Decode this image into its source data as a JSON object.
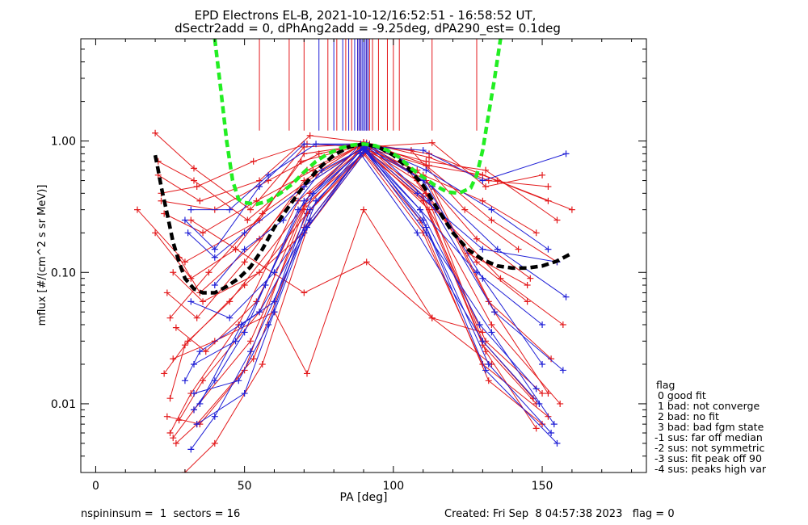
{
  "chart_data": {
    "type": "line",
    "title_line1": "EPD Electrons EL-B, 2021-10-12/16:52:51 - 16:58:52 UT,",
    "title_line2": "dSectr2add = 0, dPhAng2add = -9.25deg, dPA290_est=   0.1deg",
    "xlabel": "PA [deg]",
    "ylabel": "mflux [#/(cm^2 s sr MeV)]",
    "x_range": [
      -5,
      185
    ],
    "y_range": [
      0.003,
      6
    ],
    "y_scale": "log",
    "x_ticks": [
      0,
      50,
      100,
      150
    ],
    "y_ticks": [
      {
        "value": 0.01,
        "label": "0.01"
      },
      {
        "value": 0.1,
        "label": "0.10"
      },
      {
        "value": 1.0,
        "label": "1.00"
      }
    ],
    "legend": {
      "title": "flag",
      "entries": [
        " 0 good fit",
        " 1 bad: not converge",
        " 2 bad: no fit",
        " 3 bad: bad fgm state",
        "-1 sus: far off median",
        "-2 sus: not symmetric",
        "-3 sus: fit peak off 90",
        "-4 sus: peaks high var"
      ]
    },
    "footer_left": "nspininsum =  1  sectors = 16",
    "footer_right": "Created: Fri Sep  8 04:57:38 2023   flag = 0",
    "colors": {
      "red": "#e31a1c",
      "blue": "#1f1fd6",
      "green": "#22ee22",
      "black": "#000000"
    },
    "series": [
      {
        "color": "red",
        "x": [
          20,
          33,
          52,
          70,
          90,
          110,
          130,
          148
        ],
        "y": [
          1.15,
          0.62,
          0.3,
          0.9,
          0.95,
          0.55,
          0.35,
          0.2
        ]
      },
      {
        "color": "red",
        "x": [
          21,
          35,
          55,
          72,
          90,
          112,
          132,
          152
        ],
        "y": [
          0.55,
          0.35,
          0.5,
          1.1,
          0.98,
          0.75,
          0.5,
          0.45
        ]
      },
      {
        "color": "red",
        "x": [
          22,
          34,
          53,
          71,
          91,
          113,
          131,
          150
        ],
        "y": [
          0.4,
          0.45,
          0.7,
          0.95,
          0.9,
          0.97,
          0.45,
          0.55
        ]
      },
      {
        "color": "red",
        "x": [
          23,
          36,
          54,
          73,
          89,
          111,
          133,
          155
        ],
        "y": [
          0.28,
          0.2,
          0.35,
          0.6,
          0.92,
          0.65,
          0.25,
          0.12
        ]
      },
      {
        "color": "red",
        "x": [
          25,
          38,
          56,
          74,
          90,
          108,
          128,
          146
        ],
        "y": [
          0.045,
          0.1,
          0.28,
          0.55,
          0.88,
          0.6,
          0.18,
          0.09
        ]
      },
      {
        "color": "red",
        "x": [
          24,
          34,
          50,
          70,
          88,
          105,
          125,
          145
        ],
        "y": [
          0.07,
          0.045,
          0.12,
          0.5,
          0.9,
          0.6,
          0.14,
          0.08
        ]
      },
      {
        "color": "red",
        "x": [
          23,
          31,
          45,
          70,
          91,
          112,
          133,
          156
        ],
        "y": [
          0.017,
          0.03,
          0.06,
          0.32,
          0.85,
          0.3,
          0.04,
          0.01
        ]
      },
      {
        "color": "red",
        "x": [
          25,
          30,
          50,
          70,
          90,
          110,
          130,
          152
        ],
        "y": [
          0.011,
          0.028,
          0.08,
          0.2,
          0.8,
          0.2,
          0.02,
          0.008
        ]
      },
      {
        "color": "red",
        "x": [
          26,
          33,
          52,
          71,
          92,
          110,
          131,
          148
        ],
        "y": [
          0.0055,
          0.009,
          0.03,
          0.28,
          0.87,
          0.38,
          0.025,
          0.0065
        ]
      },
      {
        "color": "red",
        "x": [
          27,
          34,
          53,
          70,
          90,
          109,
          132,
          150
        ],
        "y": [
          0.005,
          0.007,
          0.022,
          0.22,
          0.82,
          0.25,
          0.015,
          0.007
        ]
      },
      {
        "color": "red",
        "x": [
          25,
          32,
          48,
          68,
          89,
          111,
          130,
          147
        ],
        "y": [
          0.006,
          0.012,
          0.04,
          0.35,
          0.9,
          0.4,
          0.03,
          0.011
        ]
      },
      {
        "color": "red",
        "x": [
          28,
          36,
          55,
          72,
          91,
          113,
          134,
          152
        ],
        "y": [
          0.0075,
          0.015,
          0.05,
          0.4,
          0.93,
          0.45,
          0.05,
          0.012
        ]
      },
      {
        "color": "red",
        "x": [
          30,
          40,
          56,
          72,
          90,
          110,
          130,
          148
        ],
        "y": [
          0.003,
          0.005,
          0.02,
          0.25,
          0.85,
          0.35,
          0.028,
          0.01
        ]
      },
      {
        "color": "red",
        "x": [
          26,
          40,
          60,
          71,
          90,
          113,
          133
        ],
        "y": [
          0.022,
          0.03,
          0.05,
          0.017,
          0.3,
          0.045,
          0.02
        ]
      },
      {
        "color": "red",
        "x": [
          32,
          70,
          91,
          113,
          130
        ],
        "y": [
          0.25,
          0.07,
          0.12,
          0.045,
          0.035
        ]
      },
      {
        "color": "red",
        "x": [
          14,
          30,
          55,
          70,
          92,
          112,
          135,
          160
        ],
        "y": [
          0.3,
          0.12,
          0.25,
          0.8,
          0.95,
          0.8,
          0.5,
          0.3
        ]
      },
      {
        "color": "red",
        "x": [
          20,
          32,
          47,
          69,
          90,
          111,
          131,
          155
        ],
        "y": [
          0.2,
          0.09,
          0.15,
          0.7,
          0.93,
          0.7,
          0.6,
          0.25
        ]
      },
      {
        "color": "red",
        "x": [
          28,
          35,
          55,
          70,
          90,
          108,
          128,
          145
        ],
        "y": [
          0.13,
          0.07,
          0.18,
          0.45,
          0.9,
          0.5,
          0.12,
          0.06
        ]
      },
      {
        "color": "red",
        "x": [
          22,
          40,
          58,
          75,
          89,
          106,
          124,
          142
        ],
        "y": [
          0.35,
          0.3,
          0.5,
          0.8,
          0.93,
          0.85,
          0.3,
          0.15
        ]
      },
      {
        "color": "red",
        "x": [
          26,
          36,
          55,
          72,
          91,
          114,
          136,
          157
        ],
        "y": [
          0.1,
          0.06,
          0.1,
          0.3,
          0.86,
          0.3,
          0.09,
          0.04
        ]
      },
      {
        "color": "red",
        "x": [
          24,
          35,
          50,
          70,
          89,
          110,
          131,
          150
        ],
        "y": [
          0.008,
          0.007,
          0.018,
          0.3,
          0.88,
          0.35,
          0.03,
          0.012
        ]
      },
      {
        "color": "red",
        "x": [
          27,
          37,
          54,
          72,
          90,
          111,
          132,
          153
        ],
        "y": [
          0.038,
          0.025,
          0.06,
          0.4,
          0.95,
          0.5,
          0.06,
          0.022
        ]
      },
      {
        "color": "red",
        "x": [
          21,
          33,
          51,
          71,
          91,
          112,
          130,
          152
        ],
        "y": [
          0.7,
          0.5,
          0.25,
          0.6,
          0.97,
          0.65,
          0.55,
          0.35
        ]
      },
      {
        "color": "blue",
        "x": [
          30,
          40,
          55,
          70,
          90,
          110,
          130,
          158
        ],
        "y": [
          0.25,
          0.15,
          0.45,
          0.95,
          0.92,
          0.85,
          0.5,
          0.8
        ]
      },
      {
        "color": "blue",
        "x": [
          32,
          45,
          58,
          74,
          91,
          111,
          133,
          152
        ],
        "y": [
          0.3,
          0.3,
          0.55,
          0.95,
          0.95,
          0.6,
          0.3,
          0.15
        ]
      },
      {
        "color": "blue",
        "x": [
          31,
          40,
          50,
          70,
          90,
          108,
          130,
          155
        ],
        "y": [
          0.2,
          0.13,
          0.2,
          0.45,
          0.9,
          0.4,
          0.15,
          0.12
        ]
      },
      {
        "color": "blue",
        "x": [
          32,
          45,
          60,
          72,
          90,
          109,
          128,
          150
        ],
        "y": [
          0.06,
          0.045,
          0.1,
          0.25,
          0.85,
          0.3,
          0.1,
          0.04
        ]
      },
      {
        "color": "blue",
        "x": [
          30,
          35,
          55,
          70,
          89,
          108,
          130,
          149
        ],
        "y": [
          0.015,
          0.025,
          0.05,
          0.2,
          0.8,
          0.2,
          0.03,
          0.01
        ]
      },
      {
        "color": "blue",
        "x": [
          33,
          40,
          50,
          68,
          90,
          110,
          132,
          153
        ],
        "y": [
          0.009,
          0.015,
          0.035,
          0.3,
          0.88,
          0.25,
          0.02,
          0.006
        ]
      },
      {
        "color": "blue",
        "x": [
          32,
          40,
          52,
          71,
          91,
          111,
          131,
          155
        ],
        "y": [
          0.0045,
          0.008,
          0.025,
          0.22,
          0.85,
          0.22,
          0.018,
          0.005
        ]
      },
      {
        "color": "blue",
        "x": [
          33,
          48,
          58,
          72,
          90,
          109,
          129,
          148
        ],
        "y": [
          0.012,
          0.015,
          0.04,
          0.3,
          0.9,
          0.3,
          0.04,
          0.013
        ]
      },
      {
        "color": "blue",
        "x": [
          34,
          50,
          60,
          74,
          92,
          112,
          134,
          157
        ],
        "y": [
          0.007,
          0.012,
          0.05,
          0.35,
          0.92,
          0.35,
          0.05,
          0.018
        ]
      },
      {
        "color": "blue",
        "x": [
          33,
          47,
          57,
          70,
          90,
          111,
          133,
          154
        ],
        "y": [
          0.02,
          0.03,
          0.08,
          0.35,
          0.87,
          0.2,
          0.035,
          0.007
        ]
      },
      {
        "color": "blue",
        "x": [
          35,
          49,
          60,
          73,
          89,
          110,
          130,
          150
        ],
        "y": [
          0.01,
          0.04,
          0.06,
          0.4,
          0.95,
          0.5,
          0.09,
          0.02
        ]
      },
      {
        "color": "blue",
        "x": [
          40,
          50,
          63,
          76,
          92,
          113,
          135,
          158
        ],
        "y": [
          0.08,
          0.15,
          0.25,
          0.6,
          0.93,
          0.45,
          0.15,
          0.065
        ]
      }
    ],
    "vertical_lines": [
      {
        "color": "red",
        "x": [
          55,
          65,
          70,
          78,
          81,
          84,
          86,
          88,
          89,
          90,
          91,
          92,
          93,
          95,
          98,
          100,
          102,
          113,
          128
        ]
      },
      {
        "color": "blue",
        "x": [
          75,
          80,
          83,
          85,
          87,
          88,
          88.5,
          89,
          89.5,
          90,
          90.5,
          91,
          91.5
        ]
      }
    ],
    "fit_black": {
      "x": [
        20,
        21,
        22,
        24,
        26,
        28,
        30,
        33,
        36,
        40,
        44,
        48,
        52,
        56,
        60,
        65,
        70,
        75,
        80,
        85,
        90,
        95,
        100,
        105,
        110,
        115,
        120,
        125,
        130,
        135,
        140,
        145,
        150,
        155,
        160
      ],
      "y": [
        0.78,
        0.6,
        0.45,
        0.28,
        0.17,
        0.12,
        0.09,
        0.075,
        0.07,
        0.07,
        0.078,
        0.09,
        0.11,
        0.15,
        0.22,
        0.32,
        0.46,
        0.62,
        0.78,
        0.9,
        0.95,
        0.9,
        0.78,
        0.62,
        0.46,
        0.3,
        0.2,
        0.15,
        0.125,
        0.112,
        0.108,
        0.108,
        0.112,
        0.122,
        0.14
      ]
    },
    "fit_green": {
      "x": [
        40,
        42,
        44,
        46,
        48,
        50,
        54,
        58,
        62,
        66,
        70,
        74,
        78,
        82,
        86,
        90,
        94,
        98,
        102,
        106,
        110,
        114,
        118,
        122,
        126,
        128,
        130,
        132,
        134,
        136
      ],
      "y": [
        6,
        2.5,
        1.0,
        0.5,
        0.36,
        0.34,
        0.33,
        0.35,
        0.4,
        0.47,
        0.58,
        0.7,
        0.8,
        0.88,
        0.93,
        0.95,
        0.92,
        0.85,
        0.75,
        0.62,
        0.53,
        0.46,
        0.41,
        0.4,
        0.44,
        0.55,
        0.85,
        1.6,
        3.0,
        6
      ]
    }
  }
}
